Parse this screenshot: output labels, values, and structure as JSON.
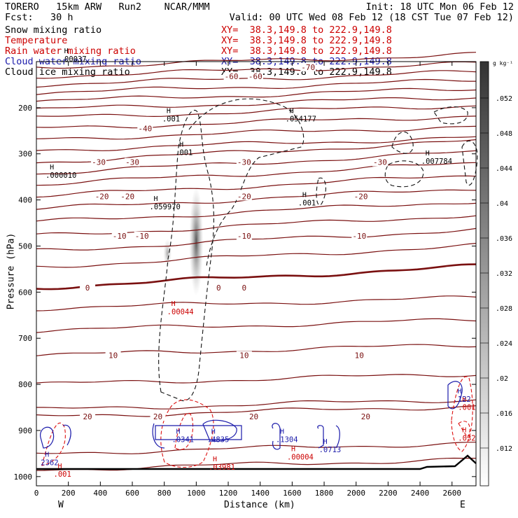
{
  "header": {
    "line1_left": "TORERO   15km ARW   Run2    NCAR/MMM",
    "line1_right": "Init: 18 UTC Mon 06 Feb 12",
    "line2_left": "Fcst:   30 h",
    "line2_right": "Valid: 00 UTC Wed 08 Feb 12 (18 CST Tue 07 Feb 12)"
  },
  "fields": [
    {
      "label": "Snow mixing ratio",
      "xy": "XY=  38.3,149.8 to 222.9,149.8",
      "color": "#000000"
    },
    {
      "label": "Temperature",
      "xy": "XY=  38.3,149.8 to 222.9,149.8",
      "color": "#cc0000"
    },
    {
      "label": "Rain water mixing ratio",
      "xy": "XY=  38.3,149.8 to 222.9,149.8",
      "color": "#cc0000"
    },
    {
      "label": "Cloud water mixing ratio",
      "xy": "XY=  38.3,149.8 to 222.9,149.8",
      "color": "#1a1aaa"
    },
    {
      "label": "Cloud ice mixing ratio",
      "xy": "XY=  38.3,149.8 to 222.9,149.8",
      "color": "#000000"
    }
  ],
  "chart_data": {
    "type": "cross-section",
    "xlabel": "Distance (km)",
    "ylabel": "Pressure (hPa)",
    "xlim": [
      0,
      2750
    ],
    "ylim": [
      1020,
      100
    ],
    "x_ticks": [
      0,
      200,
      400,
      600,
      800,
      1000,
      1200,
      1400,
      1600,
      1800,
      2000,
      2200,
      2400,
      2600
    ],
    "y_ticks": [
      200,
      300,
      400,
      500,
      600,
      700,
      800,
      900,
      1000
    ],
    "left_end_label": "W",
    "right_end_label": "E",
    "temperature_isotherms": [
      {
        "label": "-70",
        "p": 112,
        "label_x": 1700
      },
      {
        "label": "-60",
        "p": 132,
        "label_x": 1220
      },
      {
        "label": "-60",
        "p": 132,
        "label_x": 1370
      },
      {
        "label": "-40",
        "p": 245,
        "label_x": 680
      },
      {
        "label": "-30",
        "p": 318,
        "label_x": 390
      },
      {
        "label": "-30",
        "p": 318,
        "label_x": 600
      },
      {
        "label": "-30",
        "p": 318,
        "label_x": 1300
      },
      {
        "label": "-30",
        "p": 318,
        "label_x": 2150
      },
      {
        "label": "-20",
        "p": 392,
        "label_x": 410
      },
      {
        "label": "-20",
        "p": 392,
        "label_x": 570
      },
      {
        "label": "-20",
        "p": 392,
        "label_x": 1300
      },
      {
        "label": "-20",
        "p": 392,
        "label_x": 2030
      },
      {
        "label": "-10",
        "p": 478,
        "label_x": 520
      },
      {
        "label": "-10",
        "p": 478,
        "label_x": 660
      },
      {
        "label": "-10",
        "p": 478,
        "label_x": 1300
      },
      {
        "label": "-10",
        "p": 478,
        "label_x": 2020
      },
      {
        "label": "0",
        "p": 590,
        "label_x": 320
      },
      {
        "label": "0",
        "p": 590,
        "label_x": 1140
      },
      {
        "label": "0",
        "p": 590,
        "label_x": 1300
      },
      {
        "label": "10",
        "p": 737,
        "label_x": 480
      },
      {
        "label": "10",
        "p": 737,
        "label_x": 1300
      },
      {
        "label": "10",
        "p": 737,
        "label_x": 2020
      },
      {
        "label": "20",
        "p": 870,
        "label_x": 320
      },
      {
        "label": "20",
        "p": 870,
        "label_x": 760
      },
      {
        "label": "20",
        "p": 870,
        "label_x": 1360
      },
      {
        "label": "20",
        "p": 870,
        "label_x": 2060
      }
    ],
    "maxima_labels": [
      {
        "field": "snow",
        "text": ".000010",
        "x": 110,
        "p": 352,
        "color": "#000000"
      },
      {
        "field": "snow",
        "text": ".059970",
        "x": 760,
        "p": 420,
        "color": "#000000"
      },
      {
        "field": "snow",
        "text": ".054177",
        "x": 1610,
        "p": 230,
        "color": "#000000"
      },
      {
        "field": "snow",
        "text": ".007784",
        "x": 2460,
        "p": 322,
        "color": "#000000"
      },
      {
        "field": "snow",
        "text": ".00037",
        "x": 200,
        "p": 100,
        "color": "#000000"
      },
      {
        "field": "snow",
        "text": ".001",
        "x": 840,
        "p": 230,
        "color": "#000000"
      },
      {
        "field": "snow",
        "text": ".001",
        "x": 920,
        "p": 303,
        "color": "#000000"
      },
      {
        "field": "snow",
        "text": ".001",
        "x": 1690,
        "p": 412,
        "color": "#000000"
      },
      {
        "field": "rain",
        "text": ".00044",
        "x": 870,
        "p": 648,
        "color": "#cc0000"
      },
      {
        "field": "rain",
        "text": ".03981",
        "x": 1130,
        "p": 985,
        "color": "#cc0000"
      },
      {
        "field": "rain",
        "text": ".00004",
        "x": 1620,
        "p": 963,
        "color": "#cc0000"
      },
      {
        "field": "rain",
        "text": ".001",
        "x": 160,
        "p": 1000,
        "color": "#cc0000"
      },
      {
        "field": "rain",
        "text": ".032",
        "x": 2690,
        "p": 922,
        "color": "#cc0000"
      },
      {
        "field": "rain",
        "text": ".001",
        "x": 2690,
        "p": 855,
        "color": "#cc0000"
      },
      {
        "field": "cloud_water",
        "text": ".0341",
        "x": 900,
        "p": 925,
        "color": "#1a1aaa"
      },
      {
        "field": "cloud_water",
        "text": ".4835",
        "x": 1120,
        "p": 925,
        "color": "#1a1aaa"
      },
      {
        "field": "cloud_water",
        "text": ".1304",
        "x": 1550,
        "p": 925,
        "color": "#1a1aaa"
      },
      {
        "field": "cloud_water",
        "text": ".0713",
        "x": 1820,
        "p": 947,
        "color": "#1a1aaa"
      },
      {
        "field": "cloud_water",
        "text": "2362",
        "x": 80,
        "p": 975,
        "color": "#1a1aaa"
      },
      {
        "field": "cloud_water",
        "text": ".122",
        "x": 2660,
        "p": 838,
        "color": "#1a1aaa"
      }
    ],
    "colorbar": {
      "units": "g kg⁻¹",
      "ticks": [
        ".052",
        ".048",
        ".044",
        ".04",
        ".036",
        ".032",
        ".028",
        ".024",
        ".02",
        ".016",
        ".012"
      ]
    }
  }
}
